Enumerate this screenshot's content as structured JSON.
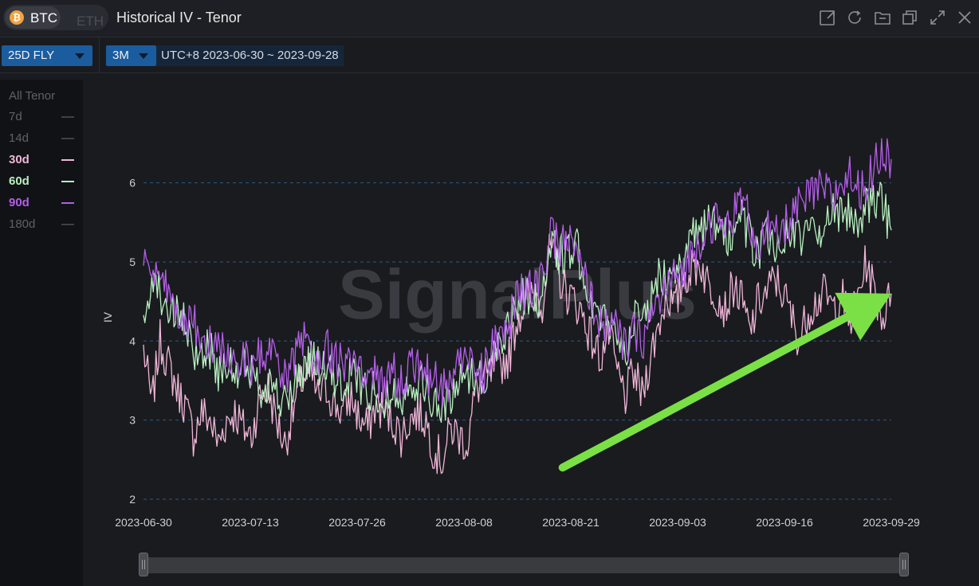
{
  "header": {
    "asset_active": "BTC",
    "asset_inactive": "ETH",
    "title": "Historical IV - Tenor",
    "icons": [
      "external-link-icon",
      "refresh-icon",
      "folder-icon",
      "duplicate-icon",
      "expand-icon",
      "close-icon"
    ]
  },
  "controls": {
    "metric_select": "25D FLY",
    "period_select": "3M",
    "date_range": "UTC+8 2023-06-30 ~ 2023-09-28"
  },
  "legend": {
    "title": "All Tenor",
    "items": [
      {
        "label": "7d",
        "color": "#5e6169",
        "active": false
      },
      {
        "label": "14d",
        "color": "#5e6169",
        "active": false
      },
      {
        "label": "30d",
        "color": "#f0b6d8",
        "active": true
      },
      {
        "label": "60d",
        "color": "#b8f0c0",
        "active": true
      },
      {
        "label": "90d",
        "color": "#b45ee8",
        "active": true
      },
      {
        "label": "180d",
        "color": "#5e6169",
        "active": false
      }
    ]
  },
  "watermark": "SignalPlus",
  "chart_data": {
    "type": "line",
    "ylabel": "IV",
    "ylim": [
      2,
      6.6
    ],
    "yticks": [
      2,
      3,
      4,
      5,
      6
    ],
    "x_start": "2023-06-30",
    "x_end": "2023-09-29",
    "xticks": [
      "2023-06-30",
      "2023-07-13",
      "2023-07-26",
      "2023-08-08",
      "2023-08-21",
      "2023-09-03",
      "2023-09-16",
      "2023-09-29"
    ],
    "grid": "horizontal dashed",
    "series": [
      {
        "name": "30d",
        "color": "#f0b6d8",
        "values": [
          3.9,
          3.2,
          4.0,
          3.7,
          3.4,
          3.2,
          2.8,
          3.1,
          3.0,
          2.7,
          3.0,
          3.1,
          2.9,
          2.8,
          3.3,
          3.4,
          3.0,
          2.7,
          3.1,
          3.5,
          3.6,
          3.3,
          3.4,
          3.2,
          3.1,
          3.3,
          3.0,
          2.9,
          3.2,
          3.1,
          3.0,
          2.8,
          3.0,
          3.1,
          3.0,
          2.6,
          2.5,
          2.9,
          2.8,
          2.7,
          3.4,
          3.5,
          3.6,
          3.7,
          3.8,
          4.3,
          4.5,
          4.6,
          4.5,
          5.2,
          4.8,
          4.6,
          4.5,
          4.3,
          4.0,
          3.8,
          4.1,
          3.6,
          3.3,
          3.6,
          3.3,
          3.8,
          4.2,
          4.6,
          4.4,
          4.8,
          4.9,
          5.0,
          4.7,
          4.6,
          4.4,
          4.7,
          4.5,
          4.1,
          4.5,
          4.6,
          4.8,
          4.6,
          4.3,
          4.0,
          4.4,
          4.5,
          4.6,
          4.4,
          4.6,
          4.2,
          4.6,
          5.0,
          4.6,
          4.3,
          4.6
        ]
      },
      {
        "name": "60d",
        "color": "#b8f0c0",
        "values": [
          4.1,
          4.9,
          4.6,
          4.4,
          4.3,
          4.2,
          3.8,
          3.9,
          3.9,
          3.6,
          3.8,
          3.5,
          3.7,
          3.6,
          3.4,
          3.5,
          3.3,
          3.2,
          3.4,
          3.6,
          3.8,
          3.7,
          3.6,
          3.5,
          3.4,
          3.6,
          3.5,
          3.3,
          3.4,
          3.2,
          3.4,
          3.3,
          3.5,
          3.5,
          3.4,
          3.2,
          3.1,
          3.3,
          3.5,
          3.6,
          3.6,
          3.5,
          3.8,
          4.0,
          4.3,
          4.5,
          4.6,
          4.5,
          4.6,
          5.2,
          5.1,
          5.1,
          5.2,
          4.9,
          4.5,
          4.2,
          4.3,
          4.0,
          3.9,
          4.3,
          4.2,
          4.5,
          4.8,
          4.9,
          5.0,
          4.9,
          5.3,
          5.3,
          5.5,
          5.4,
          5.3,
          5.4,
          5.6,
          5.3,
          5.1,
          5.3,
          5.2,
          5.3,
          5.4,
          5.3,
          5.3,
          5.4,
          5.5,
          5.6,
          5.6,
          5.7,
          5.5,
          5.7,
          5.8,
          5.7,
          5.4
        ]
      },
      {
        "name": "90d",
        "color": "#b45ee8",
        "values": [
          5.1,
          4.8,
          4.7,
          4.6,
          4.4,
          4.3,
          4.2,
          4.1,
          4.0,
          3.9,
          3.9,
          3.7,
          3.8,
          3.6,
          3.8,
          3.9,
          3.7,
          3.5,
          3.7,
          4.0,
          3.9,
          3.8,
          3.9,
          3.8,
          3.7,
          3.8,
          3.6,
          3.5,
          3.6,
          3.4,
          3.6,
          3.5,
          3.7,
          3.7,
          3.6,
          3.5,
          3.4,
          3.5,
          3.8,
          3.7,
          3.7,
          3.6,
          3.9,
          4.0,
          4.2,
          4.6,
          4.6,
          4.7,
          4.8,
          5.3,
          5.2,
          5.3,
          5.1,
          4.8,
          4.5,
          4.2,
          4.3,
          4.1,
          3.9,
          4.1,
          4.0,
          4.3,
          4.5,
          4.7,
          4.8,
          4.9,
          5.1,
          5.3,
          5.5,
          5.5,
          5.4,
          5.6,
          5.8,
          5.5,
          5.2,
          5.4,
          5.3,
          5.4,
          5.6,
          5.7,
          5.8,
          5.9,
          5.9,
          5.8,
          6.0,
          6.1,
          5.9,
          6.0,
          6.2,
          6.4,
          6.3
        ]
      }
    ],
    "annotations": [
      {
        "type": "arrow",
        "color": "#7be046",
        "from": {
          "date": "2023-08-20",
          "value": 2.4
        },
        "to": {
          "date": "2023-09-29",
          "value": 4.6
        }
      }
    ]
  },
  "slider": {
    "start": 0,
    "end": 1
  }
}
